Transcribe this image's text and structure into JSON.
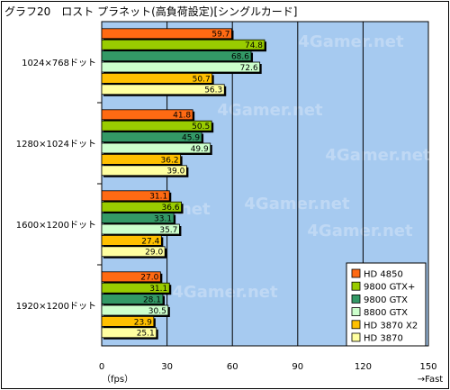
{
  "chart_data": {
    "type": "bar",
    "orientation": "horizontal",
    "title": "グラフ20　ロスト プラネット(高負荷設定)[シングルカード]",
    "categories": [
      "1024×768ドット",
      "1280×1024ドット",
      "1600×1200ドット",
      "1920×1200ドット"
    ],
    "series": [
      {
        "name": "HD 4850",
        "color": "#ff6a13",
        "values": [
          59.7,
          41.8,
          31.1,
          27.0
        ]
      },
      {
        "name": "9800 GTX+",
        "color": "#99cc00",
        "values": [
          74.8,
          50.5,
          36.6,
          31.1
        ]
      },
      {
        "name": "9800 GTX",
        "color": "#339966",
        "values": [
          68.6,
          45.9,
          33.1,
          28.1
        ]
      },
      {
        "name": "8800 GTX",
        "color": "#ccffcc",
        "values": [
          72.6,
          49.9,
          35.7,
          30.5
        ]
      },
      {
        "name": "HD 3870 X2",
        "color": "#ffc000",
        "values": [
          50.7,
          36.2,
          27.4,
          23.9
        ]
      },
      {
        "name": "HD 3870",
        "color": "#ffffa0",
        "values": [
          56.3,
          39.0,
          29.0,
          25.1
        ]
      }
    ],
    "xlim": [
      0,
      150
    ],
    "xticks": [
      0,
      30,
      60,
      90,
      120,
      150
    ],
    "xlabel": "（fps）",
    "xlabel_right": "→Fast",
    "grid": true,
    "legend_position": "bottom-right",
    "plot_background": "#a6caf0",
    "watermark": "4Gamer.net"
  }
}
